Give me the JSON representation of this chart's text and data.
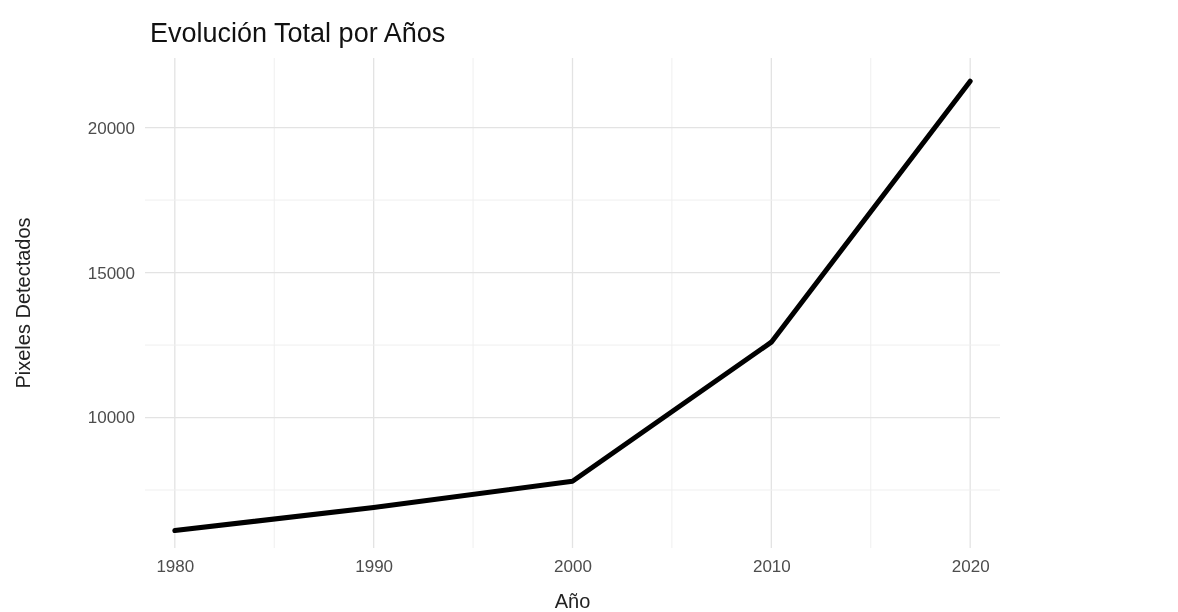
{
  "chart_data": {
    "type": "line",
    "title": "Evolución Total por Años",
    "xlabel": "Año",
    "ylabel": "Pixeles Detectados",
    "x": [
      1980,
      1990,
      2000,
      2010,
      2020
    ],
    "series": [
      {
        "color": "#000000",
        "values": [
          6100,
          6900,
          7800,
          12600,
          21600
        ]
      }
    ],
    "xlim": [
      1978.5,
      2021.5
    ],
    "xticks": [
      1980,
      {
        "value": 1985,
        "label": null
      },
      1990,
      {
        "value": 1995,
        "label": null
      },
      2000,
      {
        "value": 2005,
        "label": null
      },
      2010,
      {
        "value": 2015,
        "label": null
      },
      2020
    ],
    "ylim": [
      5500,
      22400
    ],
    "yticks": [
      {
        "value": 7500,
        "label": null
      },
      10000,
      {
        "value": 12500,
        "label": null
      },
      15000,
      {
        "value": 17500,
        "label": null
      },
      20000
    ],
    "grid": true,
    "marker": "none",
    "line_style": "solid"
  }
}
